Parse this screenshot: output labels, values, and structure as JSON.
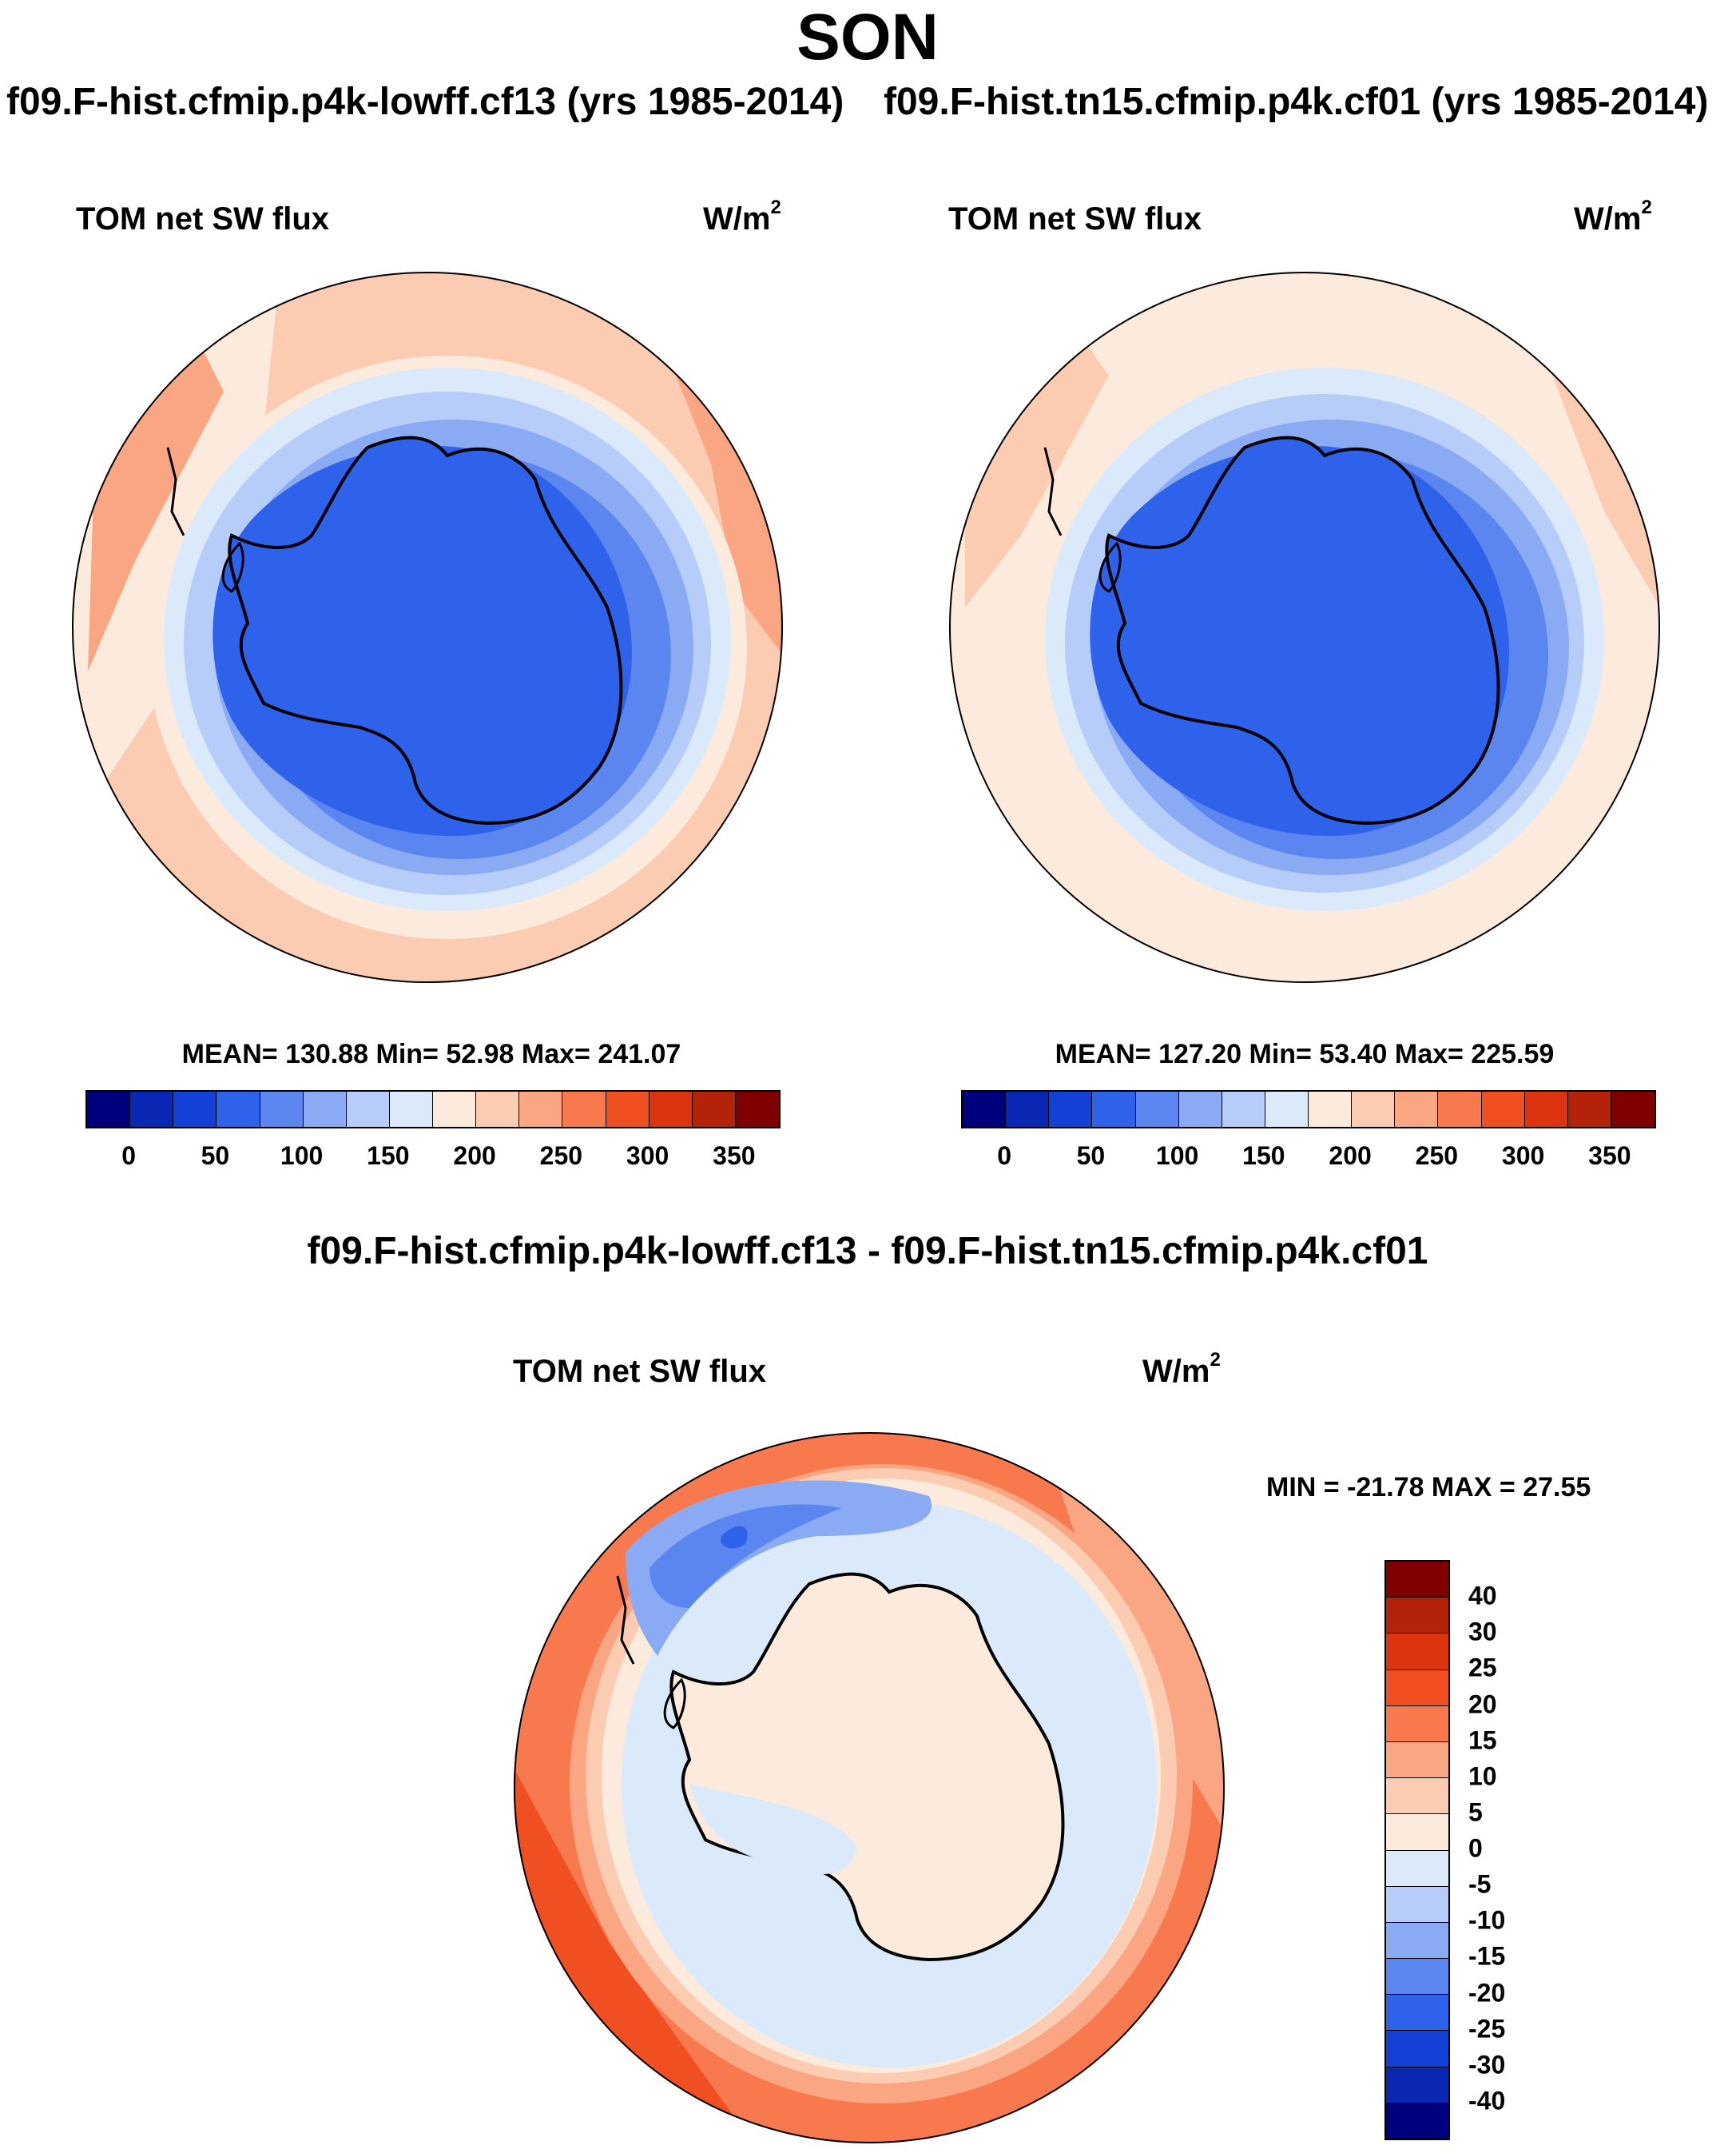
{
  "title": "SON",
  "panels": [
    {
      "case_title": "f09.F-hist.cfmip.p4k-lowff.cf13 (yrs 1985-2014)",
      "variable": "TOM net SW flux",
      "units": "W/m",
      "units_sup": "2",
      "stats": "MEAN= 130.88  Min=  52.98  Max= 241.07"
    },
    {
      "case_title": "f09.F-hist.tn15.cfmip.p4k.cf01 (yrs 1985-2014)",
      "variable": "TOM net SW flux",
      "units": "W/m",
      "units_sup": "2",
      "stats": "MEAN= 127.20  Min=  53.40  Max= 225.59"
    }
  ],
  "diff_panel": {
    "title": "f09.F-hist.cfmip.p4k-lowff.cf13 - f09.F-hist.tn15.cfmip.p4k.cf01",
    "variable": "TOM net SW flux",
    "units": "W/m",
    "units_sup": "2",
    "stats": "MIN = -21.78 MAX =  27.55"
  },
  "colorbar_abs": {
    "labels": [
      "0",
      "50",
      "100",
      "150",
      "200",
      "250",
      "300",
      "350"
    ],
    "colors": [
      "#00007f",
      "#0a27b4",
      "#1341d8",
      "#2f62ea",
      "#5b86ef",
      "#8aabf4",
      "#b5cdf8",
      "#dbeafb",
      "#fcebdc",
      "#fcccb2",
      "#fba683",
      "#f9794f",
      "#f04f22",
      "#dd3410",
      "#b5220a",
      "#7f0000"
    ]
  },
  "colorbar_diff": {
    "labels": [
      "40",
      "30",
      "25",
      "20",
      "15",
      "10",
      "5",
      "0",
      "-5",
      "-10",
      "-15",
      "-20",
      "-25",
      "-30",
      "-40"
    ],
    "colors": [
      "#7f0000",
      "#b5220a",
      "#dd3410",
      "#f04f22",
      "#f9794f",
      "#fba683",
      "#fcccb2",
      "#fcebdc",
      "#dbeafb",
      "#b5cdf8",
      "#8aabf4",
      "#5b86ef",
      "#2f62ea",
      "#1341d8",
      "#0a27b4",
      "#00007f"
    ]
  }
}
